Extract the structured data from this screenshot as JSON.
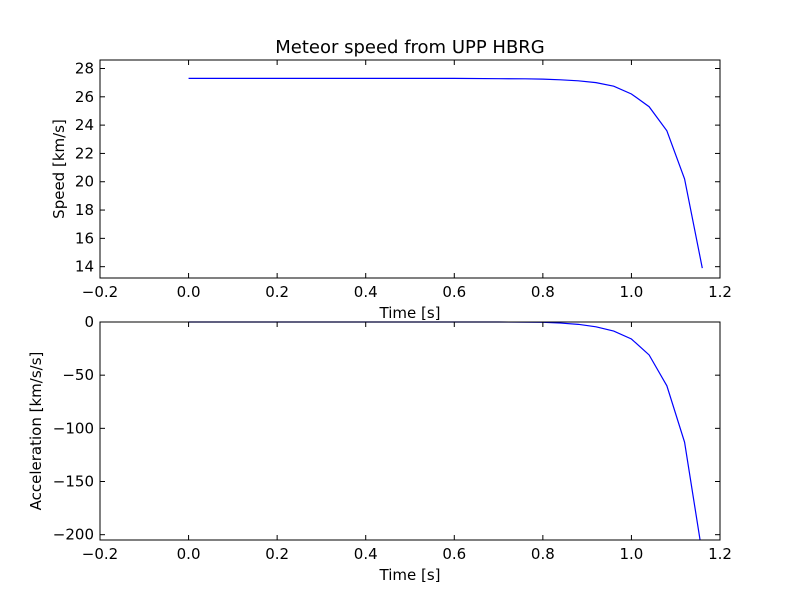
{
  "chart_data": [
    {
      "type": "line",
      "title": "Meteor speed from  UPP HBRG",
      "xlabel": "Time [s]",
      "ylabel": "Speed [km/s]",
      "xlim": [
        -0.2,
        1.2
      ],
      "ylim": [
        13.2,
        28.6
      ],
      "xticks": [
        -0.2,
        0.0,
        0.2,
        0.4,
        0.6,
        0.8,
        1.0,
        1.2
      ],
      "xtick_labels": [
        "−0.2",
        "0.0",
        "0.2",
        "0.4",
        "0.6",
        "0.8",
        "1.0",
        "1.2"
      ],
      "yticks": [
        14,
        16,
        18,
        20,
        22,
        24,
        26,
        28
      ],
      "ytick_labels": [
        "14",
        "16",
        "18",
        "20",
        "22",
        "24",
        "26",
        "28"
      ],
      "grid": false,
      "series": [
        {
          "color": "#0000ff",
          "x": [
            0.0,
            0.2,
            0.4,
            0.6,
            0.7,
            0.76,
            0.8,
            0.84,
            0.88,
            0.92,
            0.96,
            1.0,
            1.04,
            1.08,
            1.12,
            1.16
          ],
          "y": [
            27.3,
            27.3,
            27.3,
            27.3,
            27.28,
            27.27,
            27.25,
            27.2,
            27.13,
            27.0,
            26.75,
            26.2,
            25.3,
            23.6,
            20.2,
            13.9
          ]
        }
      ]
    },
    {
      "type": "line",
      "title": "",
      "xlabel": "Time [s]",
      "ylabel": "Acceleration [km/s/s]",
      "xlim": [
        -0.2,
        1.2
      ],
      "ylim": [
        -205,
        0
      ],
      "xticks": [
        -0.2,
        0.0,
        0.2,
        0.4,
        0.6,
        0.8,
        1.0,
        1.2
      ],
      "xtick_labels": [
        "−0.2",
        "0.0",
        "0.2",
        "0.4",
        "0.6",
        "0.8",
        "1.0",
        "1.2"
      ],
      "yticks": [
        0,
        -50,
        -100,
        -150,
        -200
      ],
      "ytick_labels": [
        "0",
        "−50",
        "−100",
        "−150",
        "−200"
      ],
      "grid": false,
      "series": [
        {
          "color": "#0000ff",
          "x": [
            0.0,
            0.2,
            0.4,
            0.6,
            0.7,
            0.8,
            0.84,
            0.88,
            0.92,
            0.96,
            1.0,
            1.04,
            1.08,
            1.12,
            1.155
          ],
          "y": [
            0,
            0,
            0,
            0,
            0,
            -0.3,
            -1.0,
            -2.2,
            -4.5,
            -8.5,
            -16.0,
            -31.0,
            -60.0,
            -113.0,
            -205.0
          ]
        }
      ]
    }
  ]
}
